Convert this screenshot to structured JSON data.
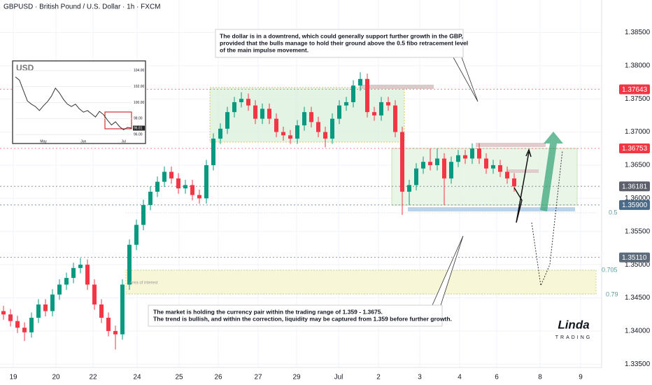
{
  "chart_data": [
    {
      "type": "candlestick",
      "title": "GBPUSD · British Pound / U.S. Dollar · 1h · FXCM",
      "open": [
        1.343,
        1.3425,
        1.3415,
        1.3405,
        1.3398,
        1.342,
        1.344,
        1.343,
        1.3455,
        1.347,
        1.348,
        1.3495,
        1.35,
        1.347,
        1.344,
        1.342,
        1.34,
        1.3395,
        1.347,
        1.353,
        1.356,
        1.359,
        1.361,
        1.3625,
        1.364,
        1.363,
        1.3615,
        1.362,
        1.3605,
        1.36,
        1.365,
        1.369,
        1.3705,
        1.373,
        1.3745,
        1.375,
        1.374,
        1.372,
        1.3735,
        1.372,
        1.37,
        1.3695,
        1.369,
        1.371,
        1.373,
        1.3715,
        1.37,
        1.369,
        1.372,
        1.374,
        1.3745,
        1.377,
        1.378,
        1.373,
        1.3725,
        1.3745,
        1.374,
        1.37,
        1.361,
        1.362,
        1.3645,
        1.3655,
        1.365,
        1.366,
        1.363,
        1.3655,
        1.3665,
        1.366,
        1.3675,
        1.366,
        1.3645,
        1.365,
        1.364,
        1.363
      ],
      "high": [
        1.3438,
        1.3433,
        1.3423,
        1.3413,
        1.3428,
        1.3448,
        1.3448,
        1.3463,
        1.3478,
        1.3488,
        1.3503,
        1.351,
        1.3508,
        1.3478,
        1.3448,
        1.3428,
        1.3408,
        1.3478,
        1.3538,
        1.3568,
        1.3598,
        1.3618,
        1.3633,
        1.3648,
        1.3648,
        1.3638,
        1.3628,
        1.3628,
        1.3613,
        1.3658,
        1.3698,
        1.3713,
        1.3738,
        1.3753,
        1.376,
        1.3758,
        1.3748,
        1.3743,
        1.3743,
        1.3728,
        1.3708,
        1.3703,
        1.3718,
        1.3738,
        1.3738,
        1.3723,
        1.3708,
        1.3728,
        1.3748,
        1.3753,
        1.3778,
        1.379,
        1.3788,
        1.3738,
        1.3753,
        1.3753,
        1.3748,
        1.3708,
        1.3628,
        1.3653,
        1.3663,
        1.3675,
        1.3675,
        1.3668,
        1.3663,
        1.3673,
        1.3673,
        1.3683,
        1.3683,
        1.3668,
        1.3658,
        1.3658,
        1.3648,
        1.3638
      ],
      "low": [
        1.3417,
        1.3407,
        1.3397,
        1.3385,
        1.339,
        1.3412,
        1.3422,
        1.3422,
        1.3447,
        1.3462,
        1.3472,
        1.3487,
        1.3462,
        1.3432,
        1.3412,
        1.3392,
        1.3372,
        1.3387,
        1.3462,
        1.3522,
        1.3552,
        1.3582,
        1.3602,
        1.3617,
        1.3622,
        1.3607,
        1.3607,
        1.3597,
        1.3592,
        1.3592,
        1.3642,
        1.3682,
        1.3697,
        1.3722,
        1.3737,
        1.3732,
        1.3712,
        1.3712,
        1.3712,
        1.3692,
        1.3687,
        1.3682,
        1.3682,
        1.3702,
        1.3707,
        1.3692,
        1.3677,
        1.3682,
        1.3712,
        1.3732,
        1.3737,
        1.3762,
        1.3722,
        1.3717,
        1.3717,
        1.3732,
        1.3692,
        1.3575,
        1.359,
        1.3612,
        1.3637,
        1.3642,
        1.3642,
        1.359,
        1.3622,
        1.3647,
        1.3652,
        1.3652,
        1.3652,
        1.3637,
        1.3637,
        1.3632,
        1.3622,
        1.361
      ],
      "close": [
        1.3425,
        1.3415,
        1.3405,
        1.3398,
        1.342,
        1.344,
        1.343,
        1.3455,
        1.347,
        1.348,
        1.3495,
        1.35,
        1.347,
        1.344,
        1.342,
        1.34,
        1.3395,
        1.347,
        1.353,
        1.356,
        1.359,
        1.361,
        1.3625,
        1.364,
        1.363,
        1.3615,
        1.362,
        1.3605,
        1.36,
        1.365,
        1.369,
        1.3705,
        1.373,
        1.3745,
        1.375,
        1.374,
        1.372,
        1.3735,
        1.372,
        1.37,
        1.3695,
        1.369,
        1.371,
        1.373,
        1.3715,
        1.37,
        1.369,
        1.372,
        1.374,
        1.3745,
        1.377,
        1.378,
        1.373,
        1.3725,
        1.3745,
        1.374,
        1.37,
        1.361,
        1.362,
        1.3645,
        1.3655,
        1.365,
        1.366,
        1.363,
        1.3655,
        1.3665,
        1.366,
        1.3675,
        1.366,
        1.3645,
        1.365,
        1.364,
        1.363,
        1.3618
      ],
      "up_color": "#089981",
      "down_color": "#f23645",
      "ylim": [
        1.3345,
        1.3899
      ],
      "yticks": [
        {
          "value": 1.335,
          "label": "1.33500"
        },
        {
          "value": 1.34,
          "label": "1.34000"
        },
        {
          "value": 1.345,
          "label": "1.34500"
        },
        {
          "value": 1.35,
          "label": "1.35000"
        },
        {
          "value": 1.355,
          "label": "1.35500"
        },
        {
          "value": 1.36,
          "label": "1.36000"
        },
        {
          "value": 1.365,
          "label": "1.36500"
        },
        {
          "value": 1.37,
          "label": "1.37000"
        },
        {
          "value": 1.375,
          "label": "1.37500"
        },
        {
          "value": 1.38,
          "label": "1.38000"
        },
        {
          "value": 1.385,
          "label": "1.38500"
        }
      ],
      "xlim": [
        -0.5,
        85.5
      ],
      "xticks": [
        {
          "value": 1.4,
          "label": "19"
        },
        {
          "value": 7.5,
          "label": "20"
        },
        {
          "value": 12.8,
          "label": "22"
        },
        {
          "value": 19.1,
          "label": "24"
        },
        {
          "value": 25.1,
          "label": "25"
        },
        {
          "value": 30.7,
          "label": "26"
        },
        {
          "value": 36.4,
          "label": "27"
        },
        {
          "value": 41.9,
          "label": "29"
        },
        {
          "value": 47.9,
          "label": "Jul"
        },
        {
          "value": 53.6,
          "label": "2"
        },
        {
          "value": 59.5,
          "label": "3"
        },
        {
          "value": 65.2,
          "label": "4"
        },
        {
          "value": 70.5,
          "label": "6"
        },
        {
          "value": 76.7,
          "label": "8"
        },
        {
          "value": 82.5,
          "label": "9"
        }
      ],
      "grid": true,
      "price_labels": [
        {
          "value": 1.37643,
          "label": "1.37643",
          "color": "#f23645"
        },
        {
          "value": 1.36753,
          "label": "1.36753",
          "color": "#f23645"
        },
        {
          "value": 1.36181,
          "label": "1.36181",
          "color": "#5d606b"
        },
        {
          "value": 1.359,
          "label": "1.35900",
          "color": "#4a6a8a"
        },
        {
          "value": 1.3511,
          "label": "1.35110",
          "color": "#5d6b7b"
        }
      ],
      "fib_labels": [
        "0.5",
        "0.705",
        "0.79"
      ],
      "zone_label": "Area of interest",
      "annotations": [
        {
          "lines": [
            "The dollar is in a downtrend, which could generally support further growth in the GBP,",
            "provided that the bulls manage to hold their ground above the 0.5 fibo retracement level",
            "of the main impulse movement."
          ]
        },
        {
          "lines": [
            "The market is holding the currency pair within the trading range of 1.359 - 1.3675.",
            "The trend is bullish, and within the correction, liquidity may be captured from 1.359 before further growth."
          ]
        }
      ],
      "logo": [
        "Linda",
        "TRADING"
      ]
    },
    {
      "type": "line",
      "title": "USD",
      "values": [
        103.2,
        102.8,
        101.5,
        100.2,
        99.8,
        99.5,
        99.0,
        99.6,
        100.1,
        100.8,
        101.8,
        101.2,
        100.4,
        99.8,
        99.5,
        99.8,
        99.2,
        98.8,
        99.0,
        98.6,
        98.2,
        98.9,
        98.5,
        97.8,
        97.2,
        97.6,
        97.0,
        96.6,
        96.9,
        96.81
      ],
      "value_labels": [
        null,
        null,
        null,
        null,
        null,
        null,
        null,
        null,
        null,
        null,
        null,
        null,
        null,
        null,
        null,
        null,
        null,
        null,
        null,
        null,
        null,
        null,
        null,
        null,
        null,
        null,
        null,
        null,
        null,
        "96.81"
      ],
      "color": "#333333",
      "ylim": [
        95.5,
        104.5
      ],
      "yticks": [
        {
          "value": 104,
          "label": "104.00"
        },
        {
          "value": 102,
          "label": "102.00"
        },
        {
          "value": 100,
          "label": "100.00"
        },
        {
          "value": 98,
          "label": "98.00"
        },
        {
          "value": 96,
          "label": "96.00"
        }
      ],
      "xlim": [
        0,
        29
      ],
      "xticks": [
        {
          "value": 7,
          "label": "May"
        },
        {
          "value": 17,
          "label": "Jun"
        },
        {
          "value": 27,
          "label": "Jul"
        }
      ]
    }
  ]
}
